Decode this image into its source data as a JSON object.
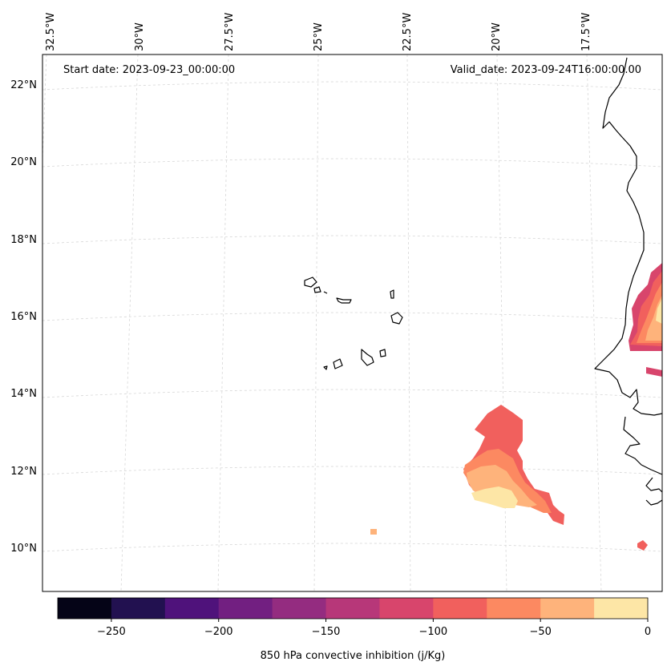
{
  "header": {
    "start_date": "Start date: 2023-09-23_00:00:00",
    "valid_date": "Valid_date: 2023-09-24T16:00:00.00"
  },
  "lon_labels": [
    "32.5°W",
    "30°W",
    "27.5°W",
    "25°W",
    "22.5°W",
    "20°W",
    "17.5°W"
  ],
  "lat_labels": [
    "22°N",
    "20°N",
    "18°N",
    "16°N",
    "14°N",
    "12°N",
    "10°N"
  ],
  "colorbar": {
    "title": "850 hPa convective inhibition (j/Kg)",
    "ticks": [
      "−250",
      "−200",
      "−150",
      "−100",
      "−50",
      "0"
    ],
    "levels": [
      -275,
      -250,
      -225,
      -200,
      -175,
      -150,
      -125,
      -100,
      -75,
      -50,
      -25,
      0
    ],
    "colors": [
      "#050417",
      "#221150",
      "#4f127b",
      "#721f81",
      "#942c80",
      "#b73779",
      "#d8456c",
      "#f1605d",
      "#fc8961",
      "#feb37b",
      "#fde6a6"
    ]
  },
  "palette": {
    "land_outline": "#000000",
    "gridline": "#d4d4d4",
    "frame": "#000000"
  }
}
